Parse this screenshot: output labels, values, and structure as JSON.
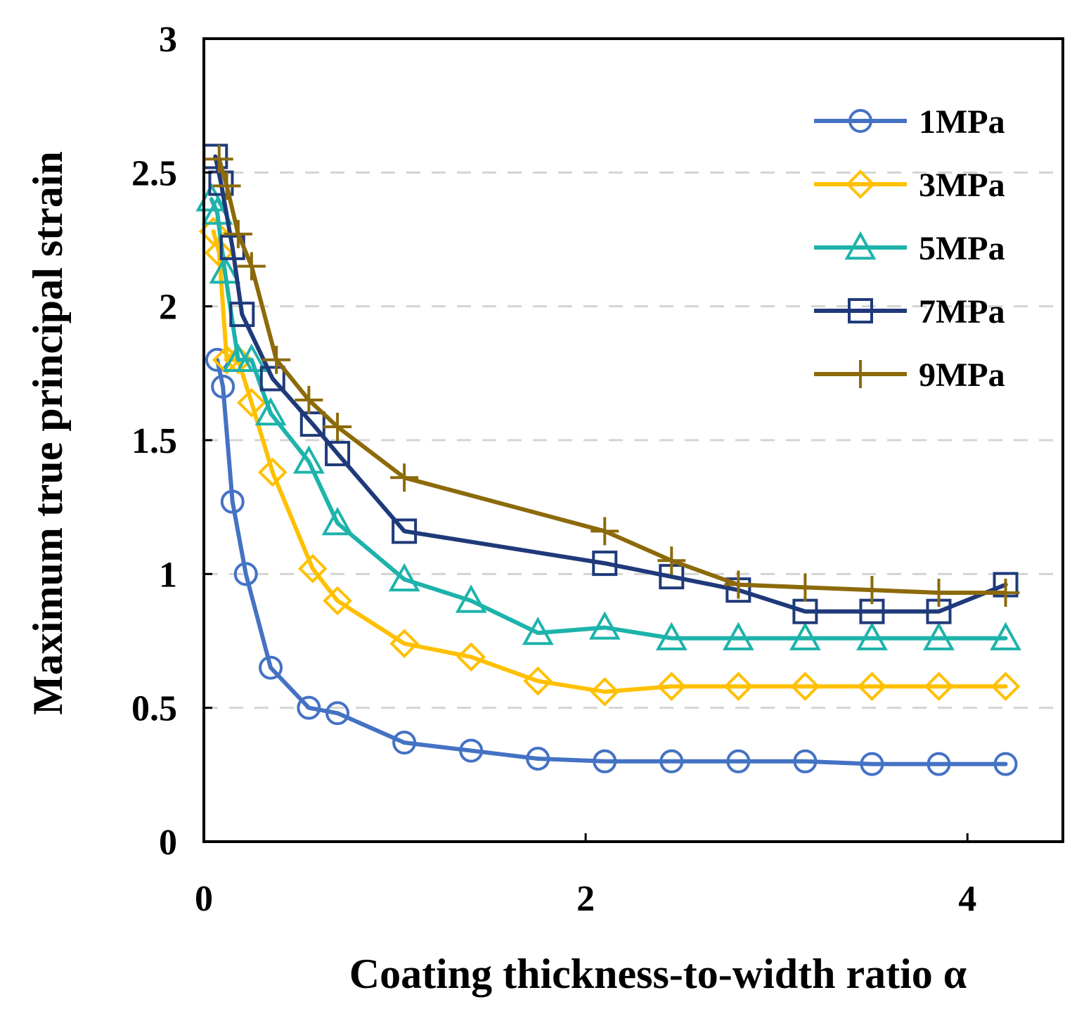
{
  "chart_data": {
    "type": "line",
    "title": "",
    "xlabel": "Coating thickness-to-width ratio α",
    "ylabel": "Maximum true principal strain",
    "xlim": [
      0,
      4.5
    ],
    "ylim": [
      0,
      3
    ],
    "xticks": [
      0,
      2,
      4
    ],
    "xtick_labels": [
      "0",
      "2",
      "4"
    ],
    "yticks": [
      0,
      0.5,
      1,
      1.5,
      2,
      2.5,
      3
    ],
    "ytick_labels": [
      "0",
      "0.5",
      "1",
      "1.5",
      "2",
      "2.5",
      "3"
    ],
    "grid": "horizontal dashed",
    "legend": "top-right",
    "series": [
      {
        "name": "1MPa",
        "color": "#4472C4",
        "marker": "circle",
        "x": [
          0.07,
          0.1,
          0.15,
          0.22,
          0.35,
          0.55,
          0.7,
          1.05,
          1.4,
          1.75,
          2.1,
          2.45,
          2.8,
          3.15,
          3.5,
          3.85,
          4.2
        ],
        "y": [
          1.8,
          1.7,
          1.27,
          1.0,
          0.65,
          0.5,
          0.48,
          0.37,
          0.34,
          0.31,
          0.3,
          0.3,
          0.3,
          0.3,
          0.29,
          0.29,
          0.29
        ]
      },
      {
        "name": "3MPa",
        "color": "#FFC000",
        "marker": "diamond",
        "x": [
          0.05,
          0.08,
          0.12,
          0.18,
          0.25,
          0.36,
          0.57,
          0.7,
          1.05,
          1.4,
          1.75,
          2.1,
          2.45,
          2.8,
          3.15,
          3.5,
          3.85,
          4.2
        ],
        "y": [
          2.28,
          2.2,
          1.8,
          1.8,
          1.64,
          1.38,
          1.02,
          0.9,
          0.74,
          0.69,
          0.6,
          0.56,
          0.58,
          0.58,
          0.58,
          0.58,
          0.58,
          0.58
        ]
      },
      {
        "name": "5MPa",
        "color": "#1DB3AB",
        "marker": "triangle",
        "x": [
          0.04,
          0.07,
          0.11,
          0.18,
          0.25,
          0.35,
          0.55,
          0.7,
          1.05,
          1.4,
          1.75,
          2.1,
          2.45,
          2.8,
          3.15,
          3.5,
          3.85,
          4.2
        ],
        "y": [
          2.4,
          2.35,
          2.13,
          1.8,
          1.8,
          1.6,
          1.42,
          1.19,
          0.98,
          0.9,
          0.78,
          0.8,
          0.76,
          0.76,
          0.76,
          0.76,
          0.76,
          0.76
        ]
      },
      {
        "name": "7MPa",
        "color": "#1F3A7A",
        "marker": "square",
        "x": [
          0.06,
          0.09,
          0.15,
          0.2,
          0.36,
          0.57,
          0.7,
          1.05,
          2.1,
          2.45,
          2.8,
          3.15,
          3.5,
          3.85,
          4.2
        ],
        "y": [
          2.56,
          2.46,
          2.22,
          1.97,
          1.73,
          1.56,
          1.45,
          1.16,
          1.04,
          0.99,
          0.94,
          0.86,
          0.86,
          0.86,
          0.96
        ]
      },
      {
        "name": "9MPa",
        "color": "#8C6A0A",
        "marker": "plus",
        "x": [
          0.08,
          0.12,
          0.18,
          0.25,
          0.38,
          0.55,
          0.7,
          1.05,
          2.1,
          2.45,
          2.8,
          3.15,
          3.5,
          3.85,
          4.2
        ],
        "y": [
          2.55,
          2.45,
          2.27,
          2.15,
          1.8,
          1.65,
          1.55,
          1.36,
          1.16,
          1.05,
          0.96,
          0.95,
          0.94,
          0.93,
          0.93
        ]
      }
    ]
  }
}
